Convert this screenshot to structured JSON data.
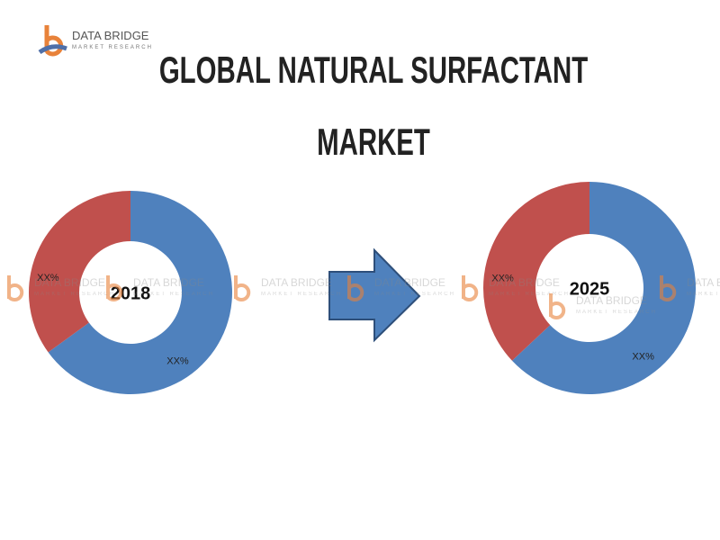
{
  "title": "GLOBAL NATURAL SURFACTANT MARKET",
  "logo": {
    "name": "DATA BRIDGE",
    "tagline": "MARKET RESEARCH"
  },
  "chart_data": [
    {
      "type": "donut",
      "label": "2018",
      "categories": [
        null,
        null
      ],
      "values": [
        65,
        35
      ],
      "value_labels": [
        "XX%",
        "XX%"
      ],
      "colors": [
        "#4f81bd",
        "#c0504d"
      ]
    },
    {
      "type": "donut",
      "label": "2025",
      "categories": [
        null,
        null
      ],
      "values": [
        63,
        37
      ],
      "value_labels": [
        "XX%",
        "XX%"
      ],
      "colors": [
        "#4f81bd",
        "#c0504d"
      ]
    }
  ]
}
